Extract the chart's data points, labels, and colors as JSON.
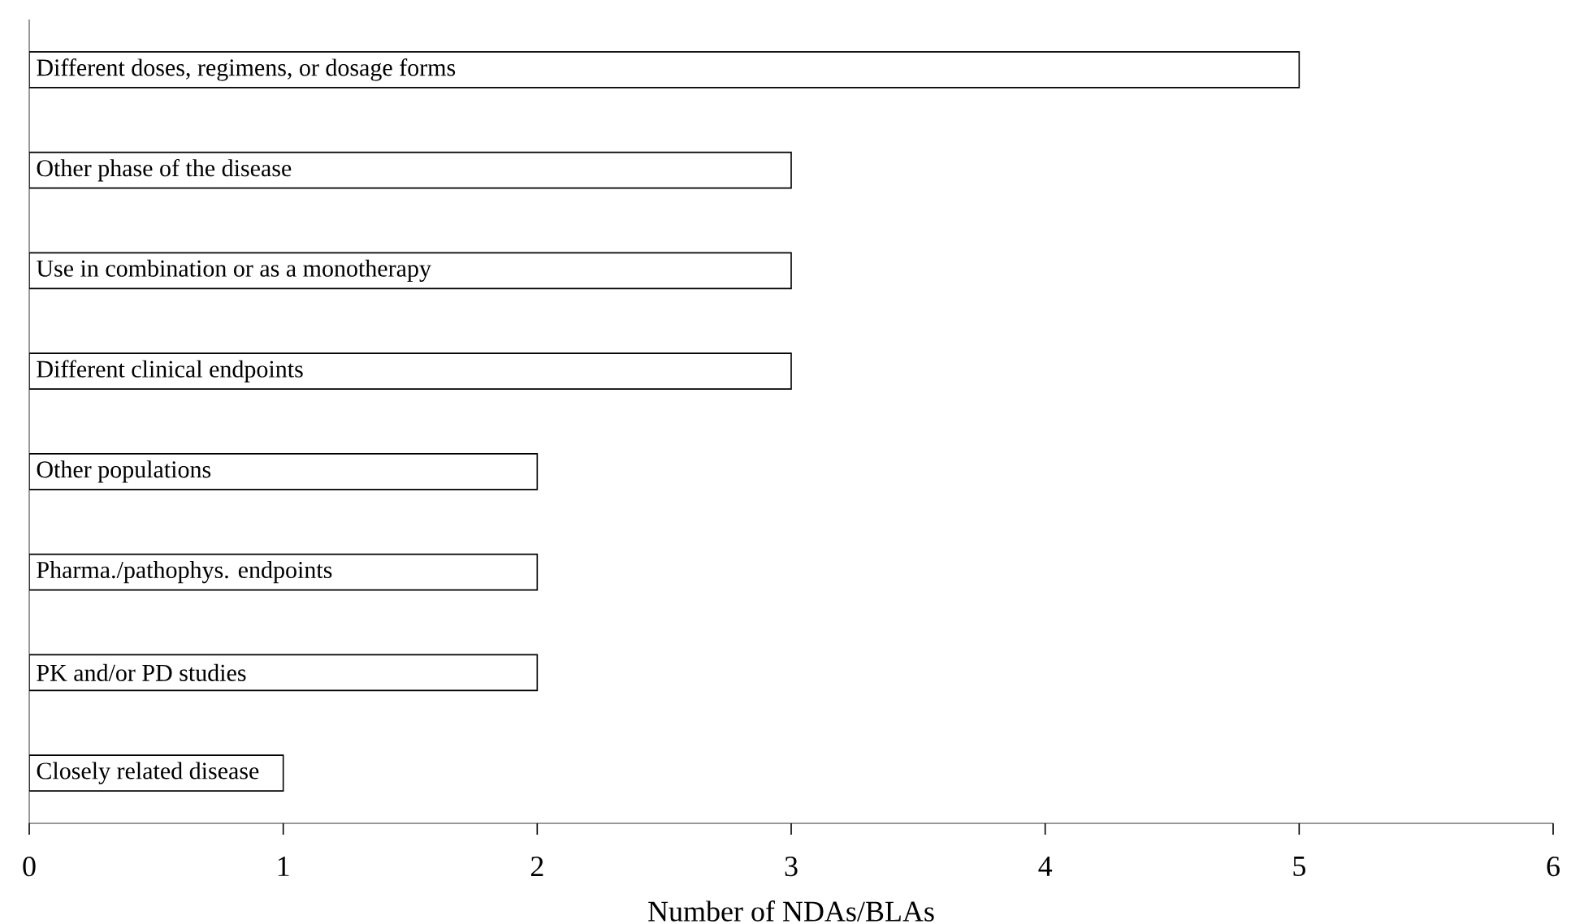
{
  "chart_data": {
    "type": "bar",
    "orientation": "horizontal",
    "xlabel": "Number of NDAs/BLAs",
    "categories": [
      "Different doses, regimens, or dosage forms",
      "Other phase of the disease",
      "Use in combination or as a monotherapy",
      "Different clinical endpoints",
      "Other populations",
      "Pharma./pathophys. endpoints",
      "PK and/or PD studies",
      "Closely related disease"
    ],
    "values": [
      5,
      3,
      3,
      3,
      2,
      2,
      2,
      1
    ],
    "color": "#ffffff",
    "xlim": [
      0,
      6
    ],
    "xticks": [
      0,
      1,
      2,
      3,
      4,
      5,
      6
    ],
    "grid": false
  }
}
